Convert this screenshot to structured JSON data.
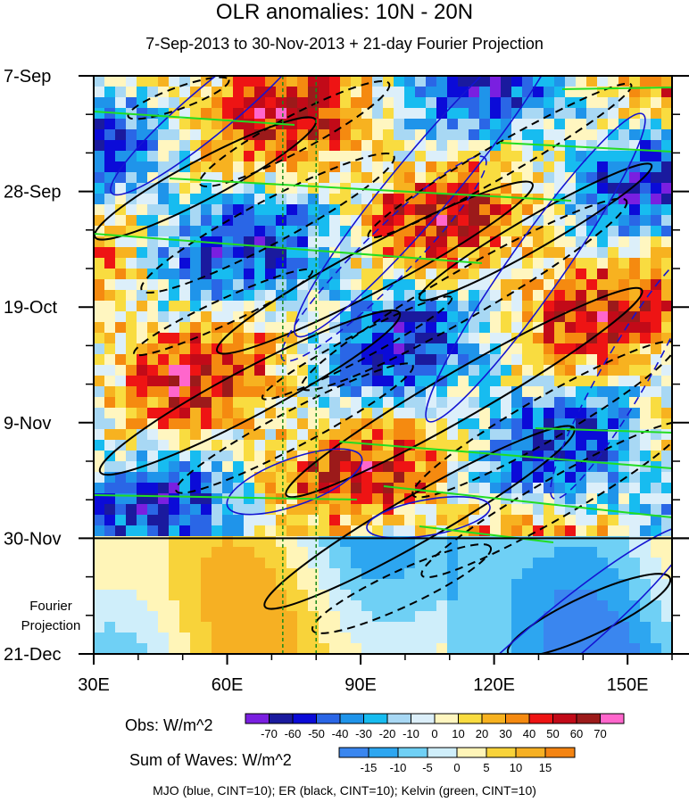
{
  "chart_data": {
    "type": "heatmap",
    "title": "OLR anomalies: 10N - 20N",
    "subtitle": "7-Sep-2013 to 30-Nov-2013 + 21-day Fourier Projection",
    "x_axis": {
      "range": [
        30,
        160
      ],
      "ticks": [
        30,
        60,
        90,
        120,
        150
      ],
      "tick_labels": [
        "30E",
        "60E",
        "90E",
        "120E",
        "150E"
      ]
    },
    "y_axis": {
      "range_days": [
        0,
        105
      ],
      "ticks_days": [
        0,
        21,
        42,
        63,
        84,
        105
      ],
      "tick_labels": [
        "7-Sep",
        "28-Sep",
        "19-Oct",
        "9-Nov",
        "30-Nov",
        "21-Dec"
      ]
    },
    "observation_end_day": 84,
    "projection_label": [
      "Fourier",
      "Projection"
    ],
    "reference_longitudes": [
      72.5,
      80
    ],
    "obs_colorbar": {
      "label": "Obs: W/m^2",
      "levels": [
        -70,
        -60,
        -50,
        -40,
        -30,
        -20,
        -10,
        0,
        10,
        20,
        30,
        40,
        50,
        60,
        70
      ],
      "colors": [
        "#7a1fe0",
        "#1a1a9e",
        "#0b0bd8",
        "#2a66e6",
        "#1f94ea",
        "#17bcf0",
        "#a8d8f4",
        "#dceffa",
        "#fff6c0",
        "#f9dc40",
        "#f7b220",
        "#f58a10",
        "#ee1414",
        "#c20a18",
        "#9c1a1a",
        "#ff66cc"
      ]
    },
    "waves_colorbar": {
      "label": "Sum of Waves: W/m^2",
      "levels": [
        -15,
        -10,
        -5,
        0,
        5,
        10,
        15
      ],
      "colors": [
        "#3a86ef",
        "#2da6f0",
        "#6fd0f5",
        "#cfeefa",
        "#fff5b8",
        "#f8d33a",
        "#f6b023",
        "#f48412"
      ]
    },
    "contours": [
      {
        "name": "MJO",
        "color": "#1414d2",
        "cint": 10
      },
      {
        "name": "ER",
        "color": "#000000",
        "cint": 10
      },
      {
        "name": "Kelvin",
        "color": "#22dd22",
        "cint": 10
      }
    ],
    "footer": "MJO (blue, CINT=10); ER (black, CINT=10); Kelvin (green, CINT=10)"
  }
}
